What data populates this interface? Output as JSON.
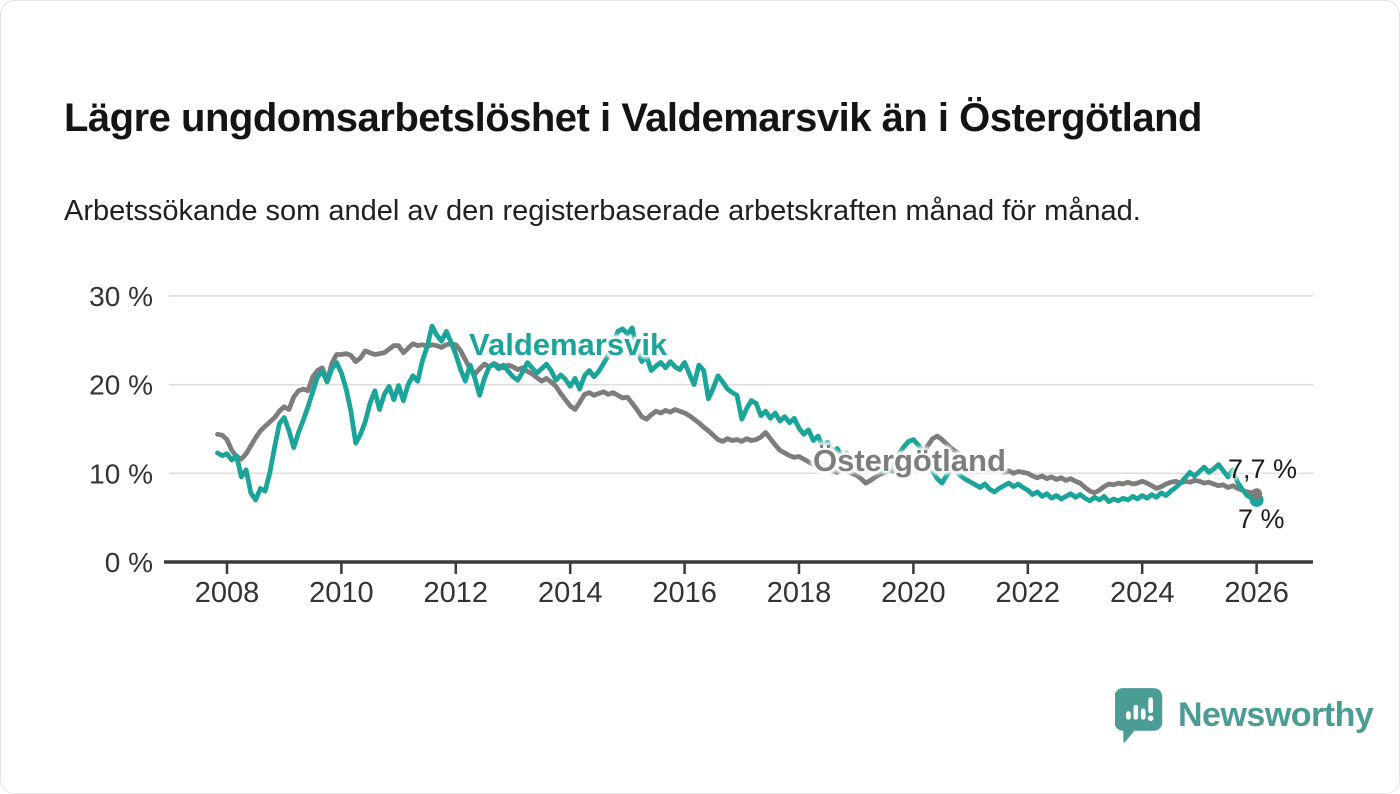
{
  "header": {
    "title": "Lägre ungdomsarbetslöshet i Valdemarsvik än i Östergötland",
    "subtitle": "Arbetssökande som andel av den registerbaserade arbetskraften månad för månad."
  },
  "footer": {
    "brand": "Newsworthy",
    "brand_color": "#4a9c94",
    "logo_icon": "bar-chart-speech-bubble-icon"
  },
  "colors": {
    "valdemarsvik": "#1ba59a",
    "ostergotland": "#7e7c7c",
    "grid": "#dedede",
    "axis": "#3a3a3a",
    "tick_text": "#333333"
  },
  "chart_data": {
    "type": "line",
    "title": "Lägre ungdomsarbetslöshet i Valdemarsvik än i Östergötland",
    "xlabel": "",
    "ylabel": "Arbetssökande som andel av den registerbaserade arbetskraften",
    "frequency": "monthly",
    "x_start": {
      "year": 2007,
      "month": 11
    },
    "x_end": {
      "year": 2026,
      "month": 1
    },
    "xlim": [
      2007.8,
      2026.95
    ],
    "ylim": [
      0,
      31
    ],
    "grid": "horizontal",
    "legend_position": "inline-labels",
    "x_ticks": [
      2008,
      2010,
      2012,
      2014,
      2016,
      2018,
      2020,
      2022,
      2024,
      2026
    ],
    "x_tick_labels": [
      "2008",
      "2010",
      "2012",
      "2014",
      "2016",
      "2018",
      "2020",
      "2022",
      "2024",
      "2026"
    ],
    "y_ticks": [
      30,
      20,
      10,
      0
    ],
    "y_tick_labels": [
      "30 %",
      "20 %",
      "10 %",
      "0 %"
    ],
    "series": [
      {
        "name": "Östergötland",
        "color": "#7e7c7c",
        "end_label": "7,7 %",
        "last_value": 7.7,
        "values": [
          14.4,
          14.3,
          13.8,
          12.6,
          11.9,
          11.6,
          12.2,
          13.1,
          14.0,
          14.8,
          15.3,
          15.8,
          16.3,
          17.0,
          17.5,
          17.2,
          18.6,
          19.3,
          19.5,
          19.3,
          20.9,
          21.6,
          21.9,
          20.4,
          22.4,
          23.4,
          23.4,
          23.5,
          23.3,
          22.6,
          23.0,
          23.8,
          23.6,
          23.4,
          23.5,
          23.6,
          24.0,
          24.4,
          24.4,
          23.6,
          24.1,
          24.6,
          24.4,
          24.5,
          24.3,
          24.5,
          24.4,
          24.2,
          24.5,
          24.6,
          24.5,
          23.8,
          22.8,
          21.8,
          21.2,
          21.8,
          22.3,
          22.0,
          22.4,
          22.1,
          21.9,
          22.2,
          22.0,
          21.7,
          21.9,
          21.5,
          21.2,
          20.8,
          20.4,
          20.7,
          20.3,
          19.8,
          19.0,
          18.3,
          17.6,
          17.2,
          18.0,
          18.9,
          19.1,
          18.8,
          19.0,
          19.2,
          18.9,
          19.1,
          18.8,
          18.5,
          18.6,
          17.9,
          17.2,
          16.4,
          16.1,
          16.6,
          17.0,
          16.8,
          17.1,
          16.9,
          17.2,
          17.0,
          16.8,
          16.5,
          16.1,
          15.7,
          15.2,
          14.8,
          14.3,
          13.8,
          13.6,
          13.9,
          13.7,
          13.8,
          13.6,
          13.9,
          13.7,
          13.8,
          14.1,
          14.6,
          13.9,
          13.2,
          12.6,
          12.3,
          12.0,
          11.8,
          11.9,
          11.6,
          11.3,
          11.0,
          10.7,
          10.9,
          10.6,
          10.3,
          10.1,
          10.4,
          10.2,
          10.0,
          9.8,
          9.4,
          8.9,
          9.2,
          9.6,
          9.9,
          10.1,
          10.4,
          10.2,
          10.5,
          10.3,
          10.6,
          10.9,
          11.3,
          12.0,
          13.1,
          13.9,
          14.2,
          13.8,
          13.3,
          12.8,
          12.4,
          12.0,
          11.7,
          11.4,
          11.1,
          10.8,
          10.6,
          10.4,
          10.2,
          10.4,
          10.1,
          10.3,
          10.0,
          10.2,
          10.1,
          10.0,
          9.7,
          9.5,
          9.7,
          9.4,
          9.6,
          9.3,
          9.5,
          9.2,
          9.4,
          9.1,
          8.9,
          8.4,
          8.0,
          7.8,
          8.1,
          8.5,
          8.8,
          8.7,
          8.9,
          8.8,
          9.0,
          8.8,
          8.9,
          9.1,
          8.9,
          8.6,
          8.3,
          8.5,
          8.8,
          9.0,
          9.1,
          8.9,
          9.1,
          9.0,
          9.2,
          9.1,
          8.9,
          9.0,
          8.8,
          8.6,
          8.7,
          8.4,
          8.6,
          8.3,
          8.1,
          7.9,
          7.8,
          7.7
        ]
      },
      {
        "name": "Valdemarsvik",
        "color": "#1ba59a",
        "end_label": "7 %",
        "last_value": 7.0,
        "values": [
          12.3,
          12.0,
          12.2,
          11.5,
          12.0,
          9.6,
          10.4,
          7.8,
          7.0,
          8.3,
          8.0,
          10.1,
          13.0,
          15.6,
          16.3,
          14.8,
          12.9,
          14.6,
          16.0,
          17.5,
          19.2,
          20.9,
          21.5,
          20.3,
          21.8,
          22.5,
          21.3,
          19.5,
          17.0,
          13.4,
          14.4,
          15.8,
          17.9,
          19.3,
          17.2,
          18.9,
          19.8,
          18.3,
          19.9,
          18.2,
          20.0,
          21.0,
          20.4,
          22.7,
          24.3,
          26.6,
          25.6,
          24.9,
          26.0,
          24.8,
          23.4,
          21.7,
          20.4,
          22.2,
          20.7,
          18.8,
          20.7,
          22.0,
          22.3,
          21.8,
          22.2,
          21.5,
          20.9,
          20.5,
          21.4,
          22.5,
          21.9,
          21.3,
          21.8,
          22.3,
          21.6,
          20.5,
          21.1,
          20.6,
          19.8,
          20.7,
          19.5,
          21.0,
          21.6,
          20.9,
          21.5,
          22.4,
          23.3,
          24.6,
          26.0,
          26.3,
          25.7,
          26.4,
          24.1,
          22.6,
          23.2,
          21.6,
          22.1,
          22.5,
          21.9,
          22.6,
          22.0,
          21.7,
          22.5,
          21.2,
          20.0,
          22.2,
          21.6,
          18.4,
          19.6,
          21.0,
          20.3,
          19.5,
          19.1,
          18.8,
          16.1,
          17.3,
          18.2,
          17.9,
          16.5,
          17.0,
          16.2,
          16.8,
          15.9,
          16.4,
          15.7,
          16.2,
          15.1,
          14.4,
          14.9,
          13.7,
          14.2,
          13.0,
          13.5,
          12.4,
          12.8,
          11.9,
          12.3,
          11.5,
          11.8,
          11.0,
          10.6,
          11.2,
          10.4,
          10.8,
          10.1,
          10.5,
          11.4,
          12.2,
          13.0,
          13.6,
          13.8,
          13.2,
          12.4,
          11.6,
          10.3,
          9.4,
          8.9,
          9.8,
          10.6,
          10.2,
          9.7,
          9.3,
          9.0,
          8.7,
          8.4,
          8.8,
          8.2,
          7.9,
          8.3,
          8.6,
          8.9,
          8.5,
          8.8,
          8.4,
          8.1,
          7.6,
          7.9,
          7.4,
          7.7,
          7.2,
          7.5,
          7.1,
          7.4,
          7.7,
          7.3,
          7.6,
          7.2,
          6.9,
          7.3,
          7.0,
          7.4,
          6.8,
          7.1,
          6.9,
          7.2,
          7.0,
          7.4,
          7.1,
          7.5,
          7.2,
          7.6,
          7.3,
          7.8,
          7.5,
          8.0,
          8.4,
          8.9,
          9.5,
          10.1,
          9.7,
          10.2,
          10.7,
          10.1,
          10.5,
          11.0,
          10.3,
          9.6,
          10.4,
          9.0,
          8.2,
          7.5,
          7.2,
          7.0
        ]
      }
    ]
  }
}
